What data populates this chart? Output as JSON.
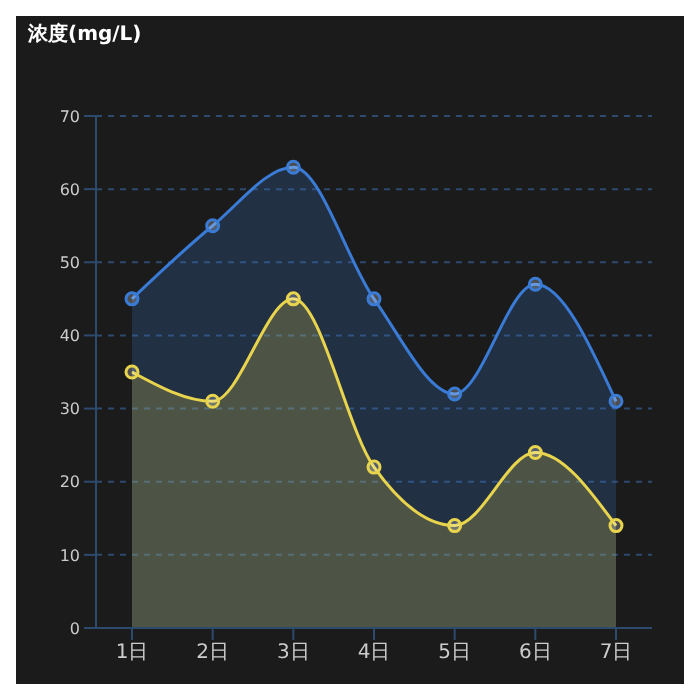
{
  "chart_data": {
    "type": "area",
    "ylabel": "浓度(mg/L)",
    "categories": [
      "1日",
      "2日",
      "3日",
      "4日",
      "5日",
      "6日",
      "7日"
    ],
    "series": [
      {
        "color": "#3a7bd5",
        "values": [
          45,
          55,
          63,
          45,
          32,
          47,
          31
        ]
      },
      {
        "color": "#e8d44d",
        "values": [
          35,
          31,
          45,
          22,
          14,
          24,
          14
        ]
      }
    ],
    "ylim": [
      0,
      70
    ],
    "yticks": [
      0,
      10,
      20,
      30,
      40,
      50,
      60,
      70
    ],
    "grid": "y",
    "marker": "circle",
    "legend": false
  }
}
